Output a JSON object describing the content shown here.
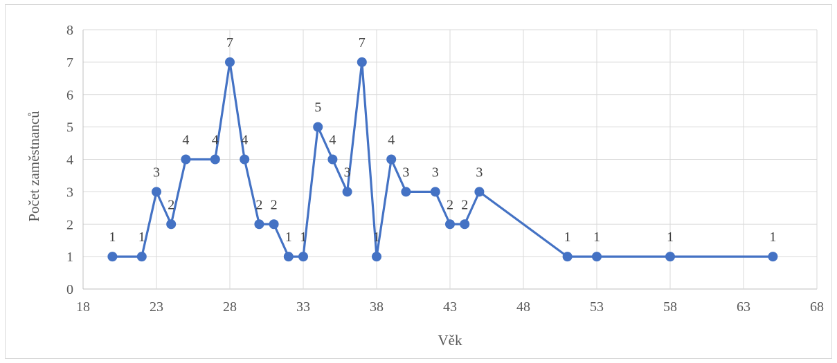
{
  "chart_data": {
    "type": "scatter",
    "mode": "lines+markers",
    "xlabel": "Věk",
    "ylabel": "Počet zaměstnanců",
    "xlim": [
      18,
      68
    ],
    "ylim": [
      0,
      8
    ],
    "xticks": [
      18,
      23,
      28,
      33,
      38,
      43,
      48,
      53,
      58,
      63,
      68
    ],
    "yticks": [
      0,
      1,
      2,
      3,
      4,
      5,
      6,
      7,
      8
    ],
    "grid": true,
    "legend": "none",
    "color": "#4472c4",
    "series": [
      {
        "x": [
          20,
          22,
          23,
          24,
          25,
          27,
          28,
          29,
          30,
          31,
          32,
          33,
          34,
          35,
          36,
          37,
          38,
          39,
          40,
          42,
          43,
          44,
          45,
          51,
          53,
          58,
          65
        ],
        "y": [
          1,
          1,
          3,
          2,
          4,
          4,
          7,
          4,
          2,
          2,
          1,
          1,
          5,
          4,
          3,
          7,
          1,
          4,
          3,
          3,
          2,
          2,
          3,
          1,
          1,
          1,
          1
        ]
      }
    ],
    "data_labels": [
      "1",
      "1",
      "3",
      "2",
      "4",
      "4",
      "7",
      "4",
      "2",
      "2",
      "1",
      "1",
      "5",
      "4",
      "3",
      "7",
      "1",
      "4",
      "3",
      "3",
      "2",
      "2",
      "3",
      "1",
      "1",
      "1",
      "1"
    ]
  }
}
